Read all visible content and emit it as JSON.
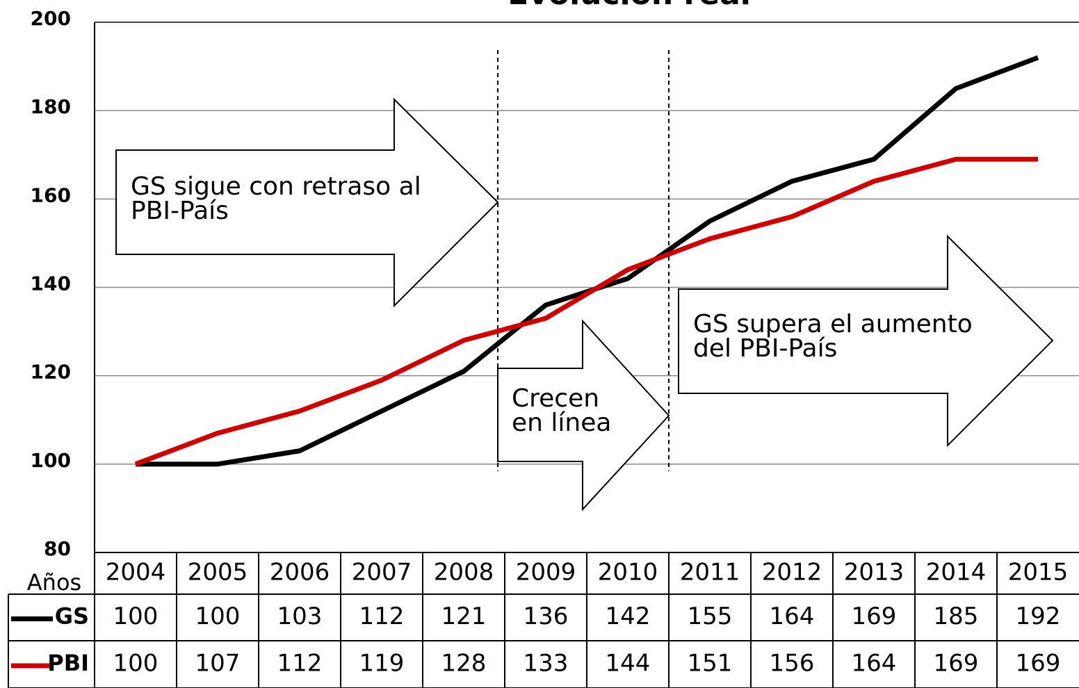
{
  "chart_data": {
    "type": "line",
    "title": "Evolución real",
    "x_label": "Años",
    "categories": [
      "2004",
      "2005",
      "2006",
      "2007",
      "2008",
      "2009",
      "2010",
      "2011",
      "2012",
      "2013",
      "2014",
      "2015"
    ],
    "series": [
      {
        "name": "GS",
        "color": "#000000",
        "values": [
          100,
          100,
          103,
          112,
          121,
          136,
          142,
          155,
          164,
          169,
          185,
          192
        ]
      },
      {
        "name": "PBI",
        "color": "#cc0000",
        "values": [
          100,
          107,
          112,
          119,
          128,
          133,
          144,
          151,
          156,
          164,
          169,
          169
        ]
      }
    ],
    "ylim": [
      80,
      200
    ],
    "yticks": [
      80,
      100,
      120,
      140,
      160,
      180,
      200
    ],
    "grid": true,
    "annotations": [
      [
        "GS sigue con retraso al",
        "PBI-País"
      ],
      [
        "Crecen",
        "en línea"
      ],
      [
        "GS supera el aumento",
        "del PBI-País"
      ]
    ]
  }
}
